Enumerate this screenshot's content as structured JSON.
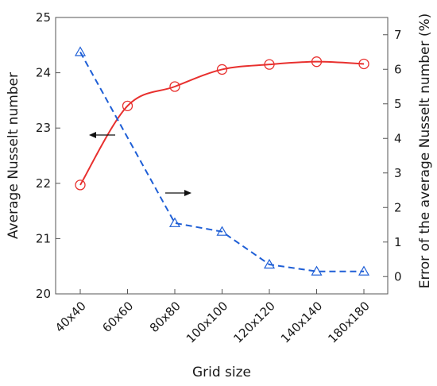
{
  "chart_data": {
    "type": "line",
    "xlabel": "Grid size",
    "ylabel_left": "Average Nusselt number",
    "ylabel_right": "Error of the average Nusselt number (%)",
    "categories": [
      "40x40",
      "60x60",
      "80x80",
      "100x100",
      "120x120",
      "140x140",
      "180x180"
    ],
    "ylim_left": [
      20,
      25
    ],
    "yticks_left": [
      "20",
      "21",
      "22",
      "23",
      "24",
      "25"
    ],
    "ylim_right": [
      -0.5,
      7.5
    ],
    "yticks_right": [
      "0",
      "1",
      "2",
      "3",
      "4",
      "5",
      "6",
      "7"
    ],
    "grid": false,
    "series": [
      {
        "axis": "left",
        "marker": "circle",
        "line": "solid",
        "color": "#e8302e",
        "values": [
          21.97,
          23.4,
          23.75,
          24.06,
          24.15,
          24.2,
          24.16
        ]
      },
      {
        "axis": "right",
        "marker": "triangle",
        "line": "dashed",
        "color": "#1f5fd6",
        "values": [
          6.5,
          null,
          1.55,
          1.3,
          0.35,
          0.15,
          0.15
        ]
      }
    ],
    "annotations": [
      {
        "kind": "arrow",
        "direction": "left",
        "refers_to": "left-axis"
      },
      {
        "kind": "arrow",
        "direction": "right",
        "refers_to": "right-axis"
      }
    ]
  }
}
